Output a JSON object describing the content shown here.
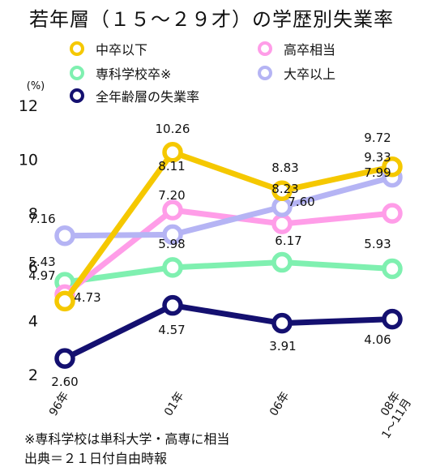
{
  "title": "若年層（１５～２９才）の学歴別失業率",
  "notes": [
    "※専科学校は単科大学・高専に相当",
    "出典＝２１日付自由時報"
  ],
  "chart_data": {
    "type": "line",
    "title": "若年層（１５～２９才）の学歴別失業率",
    "ylabel": "(%)",
    "ylim": [
      2,
      12
    ],
    "yticks": [
      2,
      4,
      6,
      8,
      10,
      12
    ],
    "grid": false,
    "categories": [
      "96年",
      "01年",
      "06年",
      "08年 1～11月"
    ],
    "series": [
      {
        "name": "中卒以下",
        "color": "#f5c800",
        "values": [
          4.73,
          10.26,
          8.83,
          9.72
        ]
      },
      {
        "name": "高卒相当",
        "color": "#ff9de8",
        "values": [
          4.97,
          8.11,
          7.6,
          7.99
        ]
      },
      {
        "name": "専科学校卒※",
        "color": "#7ff0b0",
        "values": [
          5.43,
          5.98,
          6.17,
          5.93
        ]
      },
      {
        "name": "大卒以上",
        "color": "#b5b4f4",
        "values": [
          7.16,
          7.2,
          8.23,
          9.33
        ]
      },
      {
        "name": "全年齢層の失業率",
        "color": "#141070",
        "values": [
          2.6,
          4.57,
          3.91,
          4.06
        ]
      }
    ]
  }
}
